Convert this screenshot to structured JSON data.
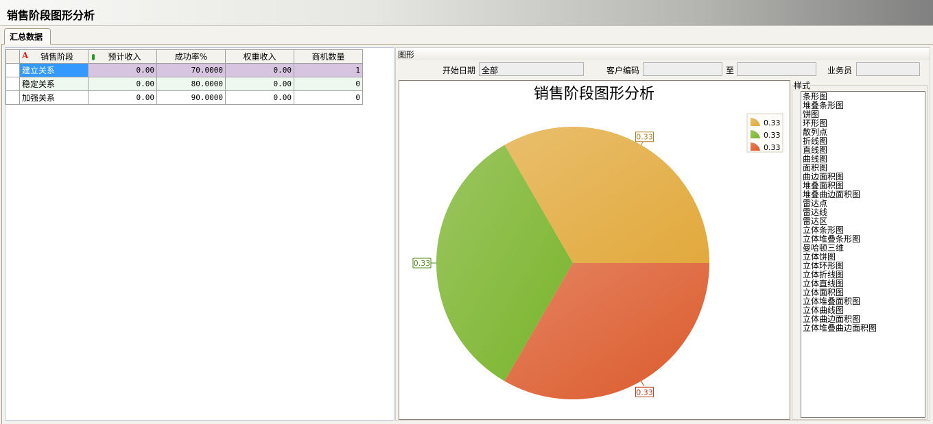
{
  "window": {
    "title": "销售阶段图形分析"
  },
  "tabs": [
    {
      "label": "汇总数据"
    }
  ],
  "grid": {
    "columns": [
      "销售阶段",
      "预计收入",
      "成功率%",
      "权重收入",
      "商机数量"
    ],
    "rows": [
      [
        "建立关系",
        "0.00",
        "70.0000",
        "0.00",
        "1"
      ],
      [
        "稳定关系",
        "0.00",
        "80.0000",
        "0.00",
        "0"
      ],
      [
        "加强关系",
        "0.00",
        "90.0000",
        "0.00",
        "0"
      ]
    ]
  },
  "chart_panel": {
    "header": "图形",
    "filters": {
      "start_date_label": "开始日期",
      "start_date_value": "全部",
      "customer_code_label": "客户编码",
      "customer_code_value": "",
      "to_label": "至",
      "to_value": "",
      "salesperson_label": "业务员",
      "salesperson_value": ""
    },
    "style_label": "样式",
    "styles": [
      "条形图",
      "堆叠条形图",
      "饼图",
      "环形图",
      "散列点",
      "折线图",
      "直线图",
      "曲线图",
      "面积图",
      "曲边面积图",
      "堆叠面积图",
      "堆叠曲边面积图",
      "雷达点",
      "雷达线",
      "雷达区",
      "立体条形图",
      "立体堆叠条形图",
      "曼哈顿三维",
      "立体饼图",
      "立体环形图",
      "立体折线图",
      "立体直线图",
      "立体面积图",
      "立体堆叠面积图",
      "立体曲线图",
      "立体曲边面积图",
      "立体堆叠曲边面积图"
    ],
    "selected_style": "饼图"
  },
  "chart_data": {
    "type": "pie",
    "title": "销售阶段图形分析",
    "values": [
      0.33,
      0.33,
      0.33
    ],
    "labels": [
      "0.33",
      "0.33",
      "0.33"
    ],
    "legend": [
      "0.33",
      "0.33",
      "0.33"
    ],
    "legend_position": "top-right",
    "colors": [
      "#e2a93c",
      "#7ab42c",
      "#dc5a2c"
    ],
    "label_colors": [
      "#b08020",
      "#4a8a10",
      "#c04018"
    ]
  }
}
